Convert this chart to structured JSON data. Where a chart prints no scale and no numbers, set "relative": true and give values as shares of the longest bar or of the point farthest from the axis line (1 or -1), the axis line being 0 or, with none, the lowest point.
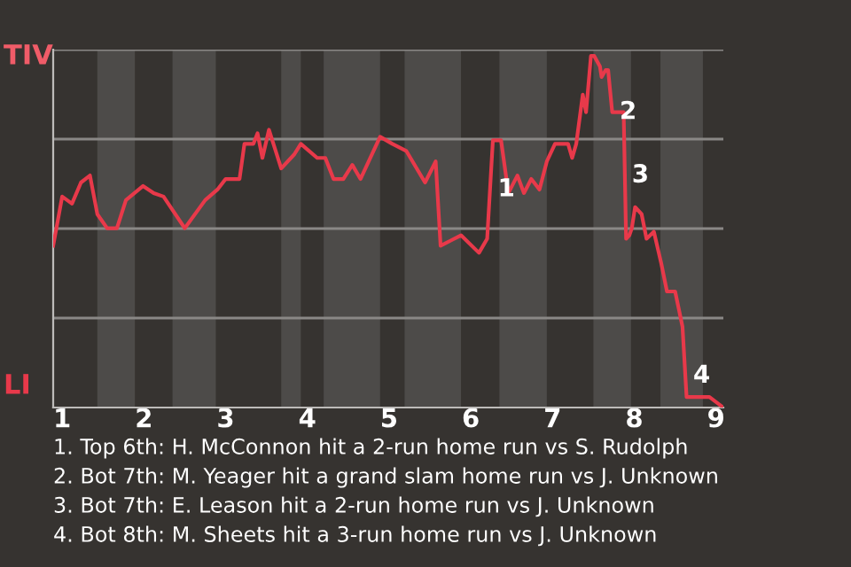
{
  "chart_data": {
    "type": "line",
    "relative": true,
    "x": [
      0.89,
      1.0,
      1.12,
      1.23,
      1.34,
      1.43,
      1.55,
      1.67,
      1.78,
      1.99,
      2.12,
      2.24,
      2.5,
      2.75,
      2.9,
      3.0,
      3.17,
      3.23,
      3.34,
      3.39,
      3.45,
      3.53,
      3.68,
      3.84,
      3.92,
      4.12,
      4.22,
      4.32,
      4.44,
      4.55,
      4.65,
      4.89,
      5.04,
      5.21,
      5.44,
      5.57,
      5.63,
      5.88,
      6.1,
      6.2,
      6.27,
      6.37,
      6.46,
      6.57,
      6.65,
      6.74,
      6.84,
      6.93,
      7.03,
      7.19,
      7.24,
      7.29,
      7.37,
      7.41,
      7.47,
      7.51,
      7.58,
      7.6,
      7.65,
      7.68,
      7.73,
      7.82,
      7.87,
      7.9,
      7.94,
      7.97,
      8.01,
      8.09,
      8.15,
      8.24,
      8.33,
      8.4,
      8.5,
      8.59,
      8.64,
      8.78,
      8.92,
      9.09
    ],
    "series": [
      {
        "color": "#e8394a",
        "values": [
          0.46,
          0.6,
          0.58,
          0.64,
          0.66,
          0.55,
          0.51,
          0.51,
          0.59,
          0.63,
          0.61,
          0.6,
          0.51,
          0.59,
          0.62,
          0.65,
          0.65,
          0.75,
          0.75,
          0.78,
          0.71,
          0.79,
          0.68,
          0.72,
          0.75,
          0.71,
          0.71,
          0.65,
          0.65,
          0.69,
          0.65,
          0.77,
          0.75,
          0.73,
          0.64,
          0.7,
          0.46,
          0.49,
          0.44,
          0.48,
          0.76,
          0.76,
          0.61,
          0.66,
          0.61,
          0.65,
          0.62,
          0.7,
          0.75,
          0.75,
          0.71,
          0.75,
          0.89,
          0.84,
          1,
          1,
          0.97,
          0.94,
          0.96,
          0.96,
          0.84,
          0.84,
          0.84,
          0.48,
          0.49,
          0.51,
          0.57,
          0.55,
          0.48,
          0.5,
          0.41,
          0.33,
          0.33,
          0.23,
          0.03,
          0.03,
          0.03,
          0
        ]
      }
    ],
    "xlim": [
      0.89,
      9.09
    ],
    "xticks": [
      1,
      2,
      3,
      4,
      5,
      6,
      7,
      8,
      9
    ],
    "grid": "y",
    "legend": false,
    "line_style": "solid",
    "bands": [
      {
        "axis": "x",
        "from": 1.43,
        "to": 1.89,
        "color": "#4d4b49"
      },
      {
        "axis": "x",
        "from": 2.35,
        "to": 2.88,
        "color": "#4d4b49"
      },
      {
        "axis": "x",
        "from": 3.68,
        "to": 3.92,
        "color": "#4d4b49"
      },
      {
        "axis": "x",
        "from": 4.2,
        "to": 4.89,
        "color": "#4d4b49"
      },
      {
        "axis": "x",
        "from": 5.19,
        "to": 5.88,
        "color": "#4d4b49"
      },
      {
        "axis": "x",
        "from": 6.35,
        "to": 6.93,
        "color": "#4d4b49"
      },
      {
        "axis": "x",
        "from": 7.5,
        "to": 7.96,
        "color": "#4d4b49"
      },
      {
        "axis": "x",
        "from": 8.32,
        "to": 8.84,
        "color": "#4d4b49"
      }
    ],
    "annotations": [
      "TIV",
      "LI",
      {
        "text": "1",
        "x": 6.24,
        "y": 0.62
      },
      {
        "text": "2",
        "x": 7.73,
        "y": 0.84
      },
      {
        "text": "3",
        "x": 7.88,
        "y": 0.66
      },
      {
        "text": "4",
        "x": 8.63,
        "y": 0.09
      },
      "1. Top 6th: H. McConnon hit a 2-run home run vs S. Rudolph",
      "2. Bot 7th: M. Yeager hit a grand slam home run vs J. Unknown",
      "3. Bot 7th: E. Leason hit a 2-run home run vs J. Unknown",
      "4. Bot 8th: M. Sheets hit a 3-run home run vs J. Unknown"
    ]
  }
}
